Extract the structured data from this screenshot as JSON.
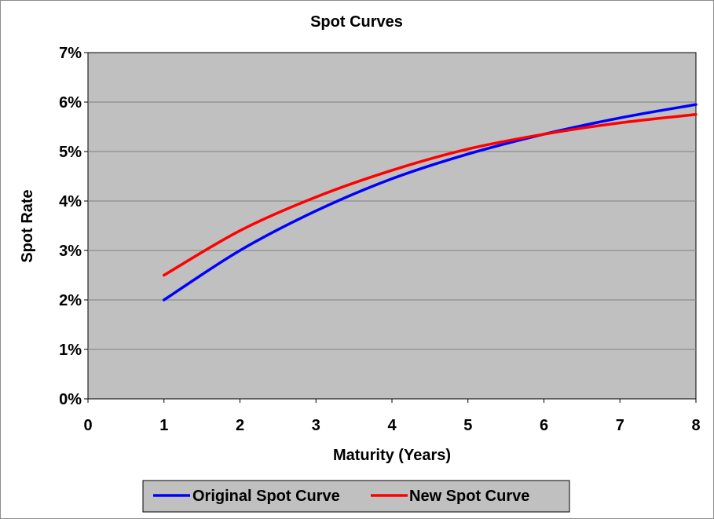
{
  "chart_data": {
    "type": "line",
    "title": "Spot Curves",
    "xlabel": "Maturity (Years)",
    "ylabel": "Spot Rate",
    "xlim": [
      0,
      8
    ],
    "ylim": [
      0,
      7
    ],
    "x_ticks": [
      "0",
      "1",
      "2",
      "3",
      "4",
      "5",
      "6",
      "7",
      "8"
    ],
    "y_ticks": [
      "0%",
      "1%",
      "2%",
      "3%",
      "4%",
      "5%",
      "6%",
      "7%"
    ],
    "grid": true,
    "legend_position": "bottom",
    "plot_background": "#c0c0c0",
    "x": [
      1,
      2,
      3,
      4,
      5,
      6,
      7,
      8
    ],
    "series": [
      {
        "name": "Original Spot Curve",
        "color": "#0000ff",
        "values": [
          2.0,
          3.0,
          3.8,
          4.45,
          4.95,
          5.35,
          5.68,
          5.95
        ]
      },
      {
        "name": "New Spot Curve",
        "color": "#ff0000",
        "values": [
          2.5,
          3.4,
          4.08,
          4.62,
          5.05,
          5.35,
          5.58,
          5.75
        ]
      }
    ]
  }
}
